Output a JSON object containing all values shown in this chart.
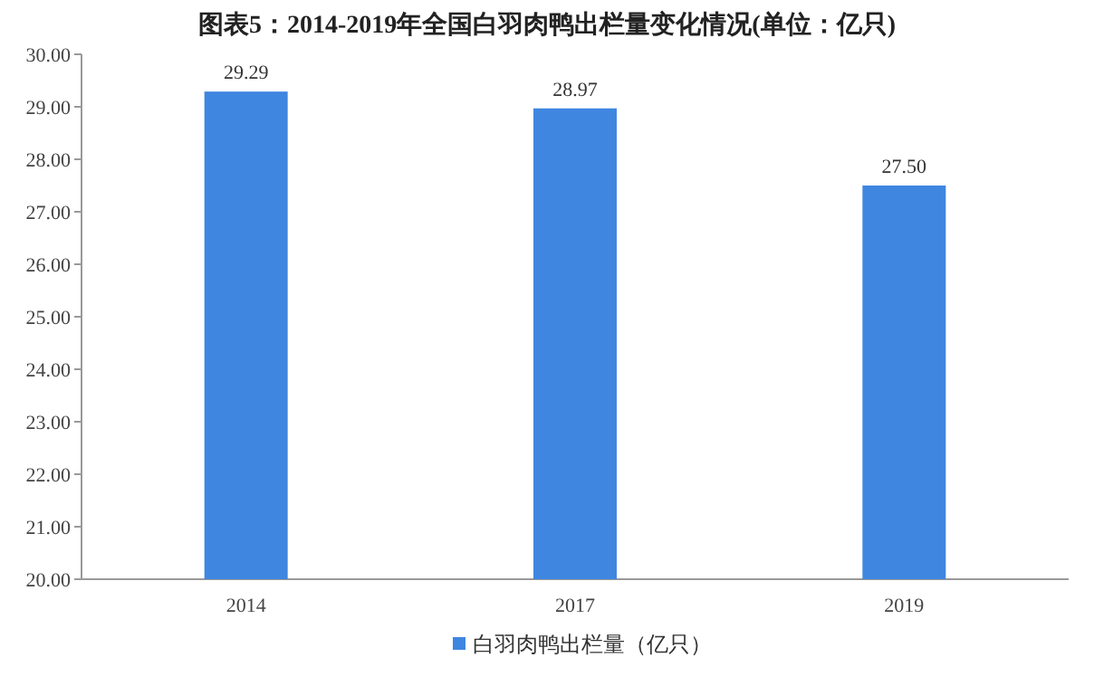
{
  "chart_data": {
    "type": "bar",
    "title": "图表5：2014-2019年全国白羽肉鸭出栏量变化情况(单位：亿只)",
    "categories": [
      "2014",
      "2017",
      "2019"
    ],
    "series": [
      {
        "name": "白羽肉鸭出栏量（亿只）",
        "color": "#3f86e0",
        "values": [
          29.29,
          28.97,
          27.5
        ],
        "value_labels": [
          "29.29",
          "28.97",
          "27.50"
        ]
      }
    ],
    "ylim": [
      20,
      30
    ],
    "yticks": [
      {
        "value": 20,
        "label": "20.00"
      },
      {
        "value": 21,
        "label": "21.00"
      },
      {
        "value": 22,
        "label": "22.00"
      },
      {
        "value": 23,
        "label": "23.00"
      },
      {
        "value": 24,
        "label": "24.00"
      },
      {
        "value": 25,
        "label": "25.00"
      },
      {
        "value": 26,
        "label": "26.00"
      },
      {
        "value": 27,
        "label": "27.00"
      },
      {
        "value": 28,
        "label": "28.00"
      },
      {
        "value": 29,
        "label": "29.00"
      },
      {
        "value": 30,
        "label": "30.00"
      }
    ],
    "legend": "bottom"
  }
}
